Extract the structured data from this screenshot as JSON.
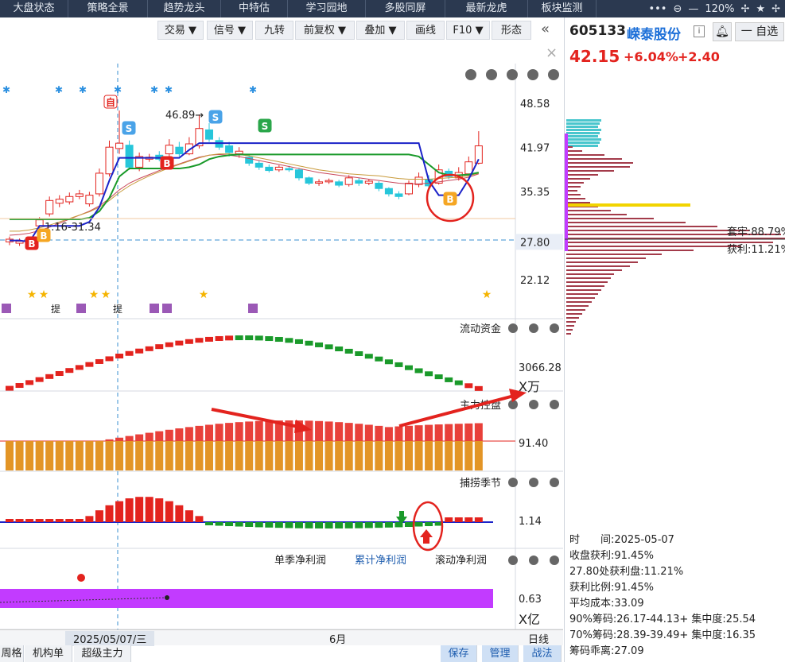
{
  "nav": {
    "tabs": [
      "大盘状态",
      "策略全景",
      "趋势龙头",
      "中特估",
      "学习园地",
      "多股同屏",
      "最新龙虎",
      "板块监测"
    ],
    "zoom": "120%"
  },
  "toolbar": {
    "buttons": [
      "交易 ▼",
      "信号 ▼",
      "九转",
      "前复权 ▼",
      "叠加 ▼",
      "画线",
      "F10 ▼",
      "形态"
    ]
  },
  "stock": {
    "code": "605133",
    "name": "嵘泰股份",
    "price": "42.15",
    "pct": "+6.04%",
    "change": "+2.40"
  },
  "main_chart": {
    "price_labels": [
      "48.58",
      "41.97",
      "35.35",
      "27.80",
      "22.12"
    ],
    "highlight_price": "27.80",
    "high_marker": "46.89",
    "low_marker": "1.16-31.34",
    "signal_tags": [
      "自",
      "S",
      "S",
      "S",
      "B",
      "B",
      "B",
      "B"
    ],
    "markers": [
      "提",
      "提"
    ]
  },
  "panels": {
    "liudong": {
      "title": "流动资金",
      "value": "3066.28",
      "unit": "X万"
    },
    "zhuli": {
      "title": "主力控盘",
      "value": "91.40"
    },
    "bulao": {
      "title": "捕捞季节",
      "value": "1.14"
    },
    "profit": {
      "tabs": [
        "单季净利润",
        "累计净利润",
        "滚动净利润"
      ],
      "value": "0.63",
      "unit": "X亿"
    }
  },
  "bottom": {
    "date": "2025/05/07/三",
    "month": "6月",
    "period": "日线",
    "tabs": [
      "周格",
      "机构单",
      "超级主力"
    ],
    "actions": [
      "保存",
      "管理",
      "战法"
    ]
  },
  "chip": {
    "tao_lao": "套牢:88.79%",
    "huo_li": "获利:11.21%",
    "info": [
      "时　　间:2025-05-07",
      "收盘获利:91.45%",
      "27.80处获利盘:11.21%",
      "获利比例:91.45%",
      "平均成本:33.09",
      "90%筹码:26.17-44.13+ 集中度:25.54",
      "70%筹码:28.39-39.49+ 集中度:16.35",
      "筹码乖离:27.09"
    ]
  },
  "colors": {
    "up": "#e3231e",
    "down": "#26c6da",
    "nav_bg": "#2b3950",
    "ma_green": "#1a9a2a",
    "ma_blue": "#1b22c8"
  }
}
